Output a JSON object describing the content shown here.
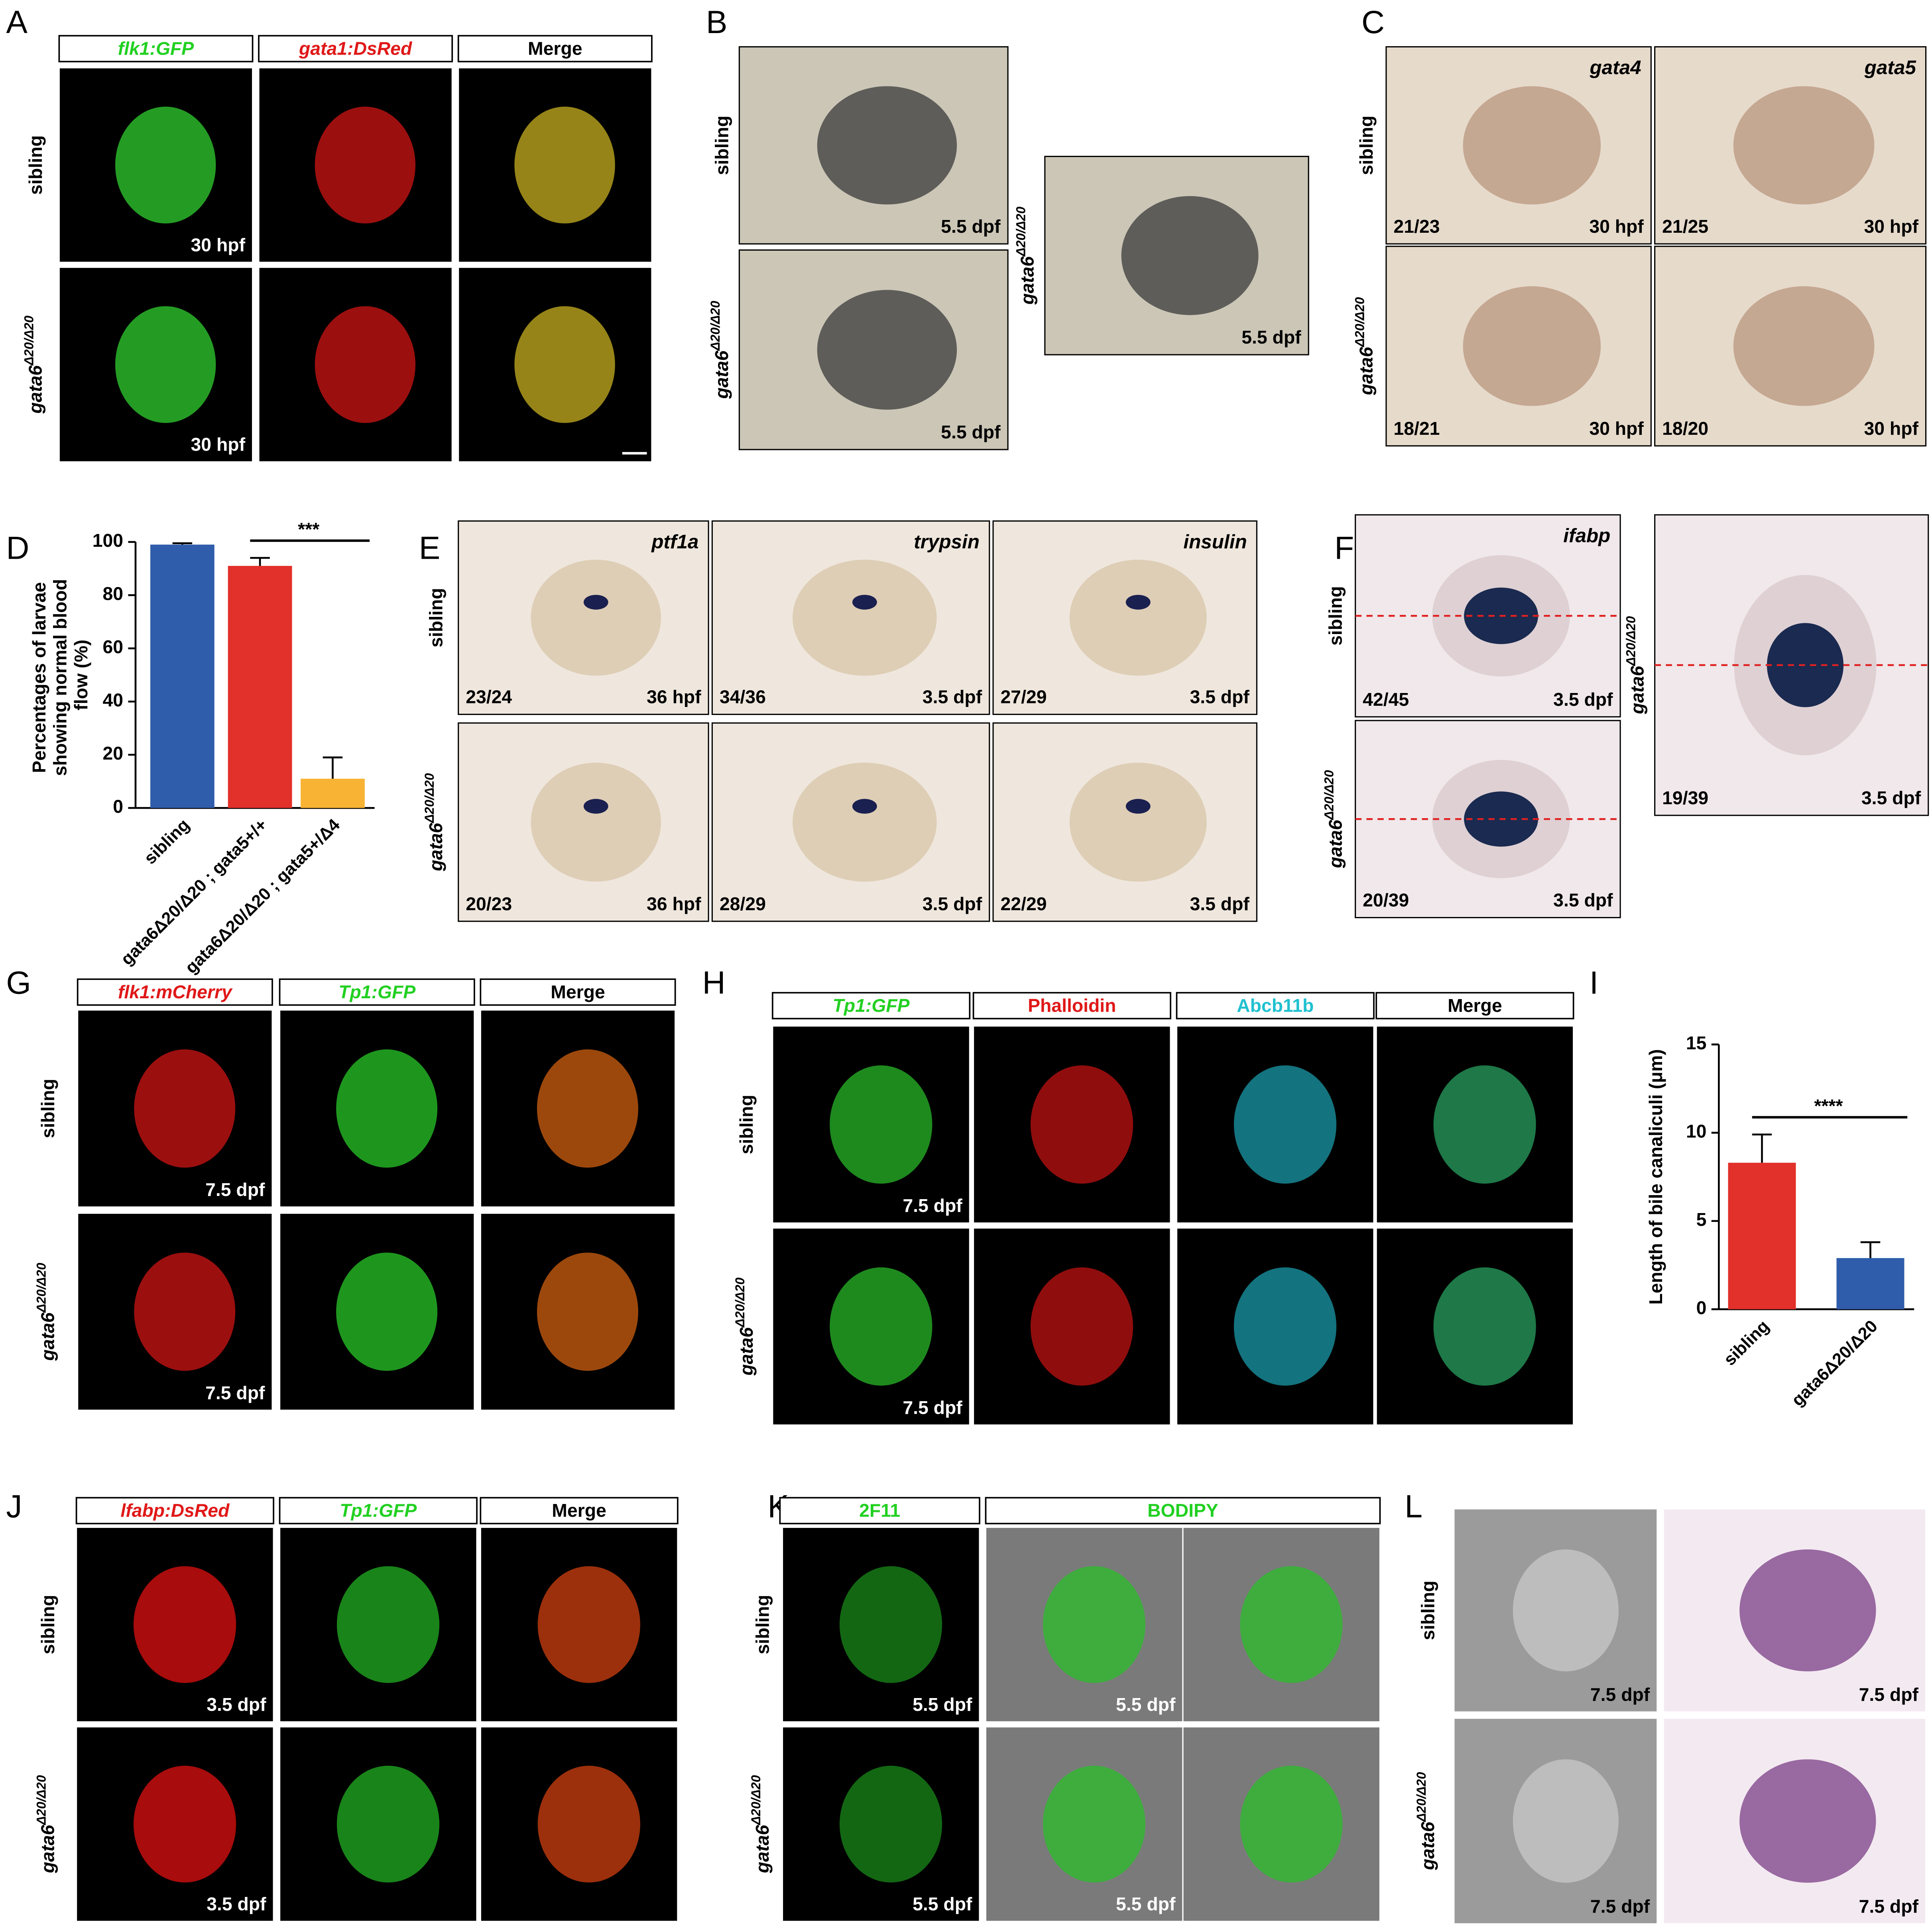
{
  "figure": {
    "panels": {
      "A": {
        "letter": "A",
        "headers": [
          {
            "text": "flk1:GFP",
            "color": "#22d022",
            "italic": true
          },
          {
            "text": "gata1:DsRed",
            "color": "#e01818",
            "italic": true
          },
          {
            "text": "Merge",
            "color": "#000000",
            "italic": false
          }
        ],
        "rows": [
          "sibling",
          {
            "gene": "gata6",
            "allele": "Δ20/Δ20"
          }
        ],
        "stages": [
          "30 hpf",
          "30 hpf"
        ]
      },
      "B": {
        "letter": "B",
        "rows": [
          "sibling",
          {
            "gene": "gata6",
            "allele": "Δ20/Δ20"
          },
          {
            "gene": "gata6",
            "allele": "Δ20/Δ20"
          }
        ],
        "stages": [
          "5.5 dpf",
          "5.5 dpf",
          "5.5 dpf"
        ]
      },
      "C": {
        "letter": "C",
        "genes": [
          "gata4",
          "gata5"
        ],
        "rows": [
          "sibling",
          {
            "gene": "gata6",
            "allele": "Δ20/Δ20"
          }
        ],
        "counts": [
          [
            "21/23",
            "21/25"
          ],
          [
            "18/21",
            "18/20"
          ]
        ],
        "stages": [
          [
            "30 hpf",
            "30 hpf"
          ],
          [
            "30 hpf",
            "30 hpf"
          ]
        ]
      },
      "D": {
        "letter": "D"
      },
      "E": {
        "letter": "E",
        "genes": [
          "ptf1a",
          "trypsin",
          "insulin"
        ],
        "rows": [
          "sibling",
          {
            "gene": "gata6",
            "allele": "Δ20/Δ20"
          }
        ],
        "counts": [
          [
            "23/24",
            "34/36",
            "27/29"
          ],
          [
            "20/23",
            "28/29",
            "22/29"
          ]
        ],
        "stages": [
          [
            "36 hpf",
            "3.5 dpf",
            "3.5 dpf"
          ],
          [
            "36 hpf",
            "3.5 dpf",
            "3.5 dpf"
          ]
        ]
      },
      "F": {
        "letter": "F",
        "gene": "ifabp",
        "rows": [
          "sibling",
          {
            "gene": "gata6",
            "allele": "Δ20/Δ20"
          },
          {
            "gene": "gata6",
            "allele": "Δ20/Δ20"
          }
        ],
        "counts": [
          "42/45",
          "20/39",
          "19/39"
        ],
        "stages": [
          "3.5 dpf",
          "3.5 dpf",
          "3.5 dpf"
        ]
      },
      "G": {
        "letter": "G",
        "headers": [
          {
            "text": "flk1:mCherry",
            "color": "#e01818",
            "italic": true
          },
          {
            "text": "Tp1:GFP",
            "color": "#22d022",
            "italic": true
          },
          {
            "text": "Merge",
            "color": "#000000",
            "italic": false
          }
        ],
        "rows": [
          "sibling",
          {
            "gene": "gata6",
            "allele": "Δ20/Δ20"
          }
        ],
        "stages": [
          "7.5 dpf",
          "7.5 dpf"
        ]
      },
      "H": {
        "letter": "H",
        "headers": [
          {
            "text": "Tp1:GFP",
            "color": "#22d022",
            "italic": true
          },
          {
            "text": "Phalloidin",
            "color": "#e01818",
            "italic": false
          },
          {
            "text": "Abcb11b",
            "color": "#20c0d0",
            "italic": false
          },
          {
            "text": "Merge",
            "color": "#000000",
            "italic": false
          }
        ],
        "rows": [
          "sibling",
          {
            "gene": "gata6",
            "allele": "Δ20/Δ20"
          }
        ],
        "stages": [
          "7.5 dpf",
          "7.5 dpf"
        ]
      },
      "I": {
        "letter": "I"
      },
      "J": {
        "letter": "J",
        "headers": [
          {
            "text": "lfabp:DsRed",
            "color": "#e01818",
            "italic": true
          },
          {
            "text": "Tp1:GFP",
            "color": "#22d022",
            "italic": true
          },
          {
            "text": "Merge",
            "color": "#000000",
            "italic": false
          }
        ],
        "rows": [
          "sibling",
          {
            "gene": "gata6",
            "allele": "Δ20/Δ20"
          }
        ],
        "stages": [
          "3.5 dpf",
          "3.5 dpf"
        ]
      },
      "K": {
        "letter": "K",
        "headers": [
          {
            "text": "2F11",
            "color": "#22d022",
            "italic": false
          },
          {
            "text": "BODIPY",
            "color": "#22d022",
            "italic": false
          }
        ],
        "rows": [
          "sibling",
          {
            "gene": "gata6",
            "allele": "Δ20/Δ20"
          }
        ],
        "stages": [
          [
            "5.5 dpf",
            "5.5 dpf"
          ],
          [
            "5.5 dpf",
            "5.5 dpf"
          ]
        ]
      },
      "L": {
        "letter": "L",
        "rows": [
          "sibling",
          {
            "gene": "gata6",
            "allele": "Δ20/Δ20"
          }
        ],
        "stages": [
          [
            "7.5 dpf",
            "7.5 dpf"
          ],
          [
            "7.5 dpf",
            "7.5 dpf"
          ]
        ]
      }
    }
  },
  "chart_data": [
    {
      "type": "bar",
      "ylabel": "Percentages of larvae showing normal blood flow (%)",
      "categories": [
        "sibling",
        "gata6Δ20/Δ20 ; gata5+/+",
        "gata6Δ20/Δ20 ; gata5+/Δ4"
      ],
      "values": [
        99,
        91,
        11
      ],
      "errors": [
        0.5,
        3,
        8
      ],
      "colors": [
        "#2f5dab",
        "#e2302a",
        "#f8b334"
      ],
      "ylim": [
        0,
        100
      ],
      "yticks": [
        0,
        20,
        40,
        60,
        80,
        100
      ],
      "significance": "***"
    },
    {
      "type": "bar",
      "ylabel": "Length of bile canaliculi (μm)",
      "categories": [
        "sibling",
        "gata6Δ20/Δ20"
      ],
      "values": [
        8.3,
        2.9
      ],
      "errors": [
        1.6,
        0.9
      ],
      "colors": [
        "#e2302a",
        "#2f5dab"
      ],
      "ylim": [
        0,
        15
      ],
      "yticks": [
        0,
        5,
        10,
        15
      ],
      "significance": "****"
    }
  ]
}
